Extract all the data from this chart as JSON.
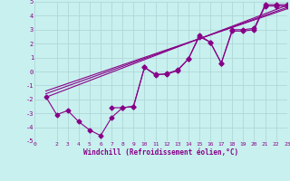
{
  "xlabel": "Windchill (Refroidissement éolien,°C)",
  "bg_color": "#c8f0ee",
  "grid_color": "#b0d8d8",
  "line_color": "#880088",
  "xlim": [
    0,
    23
  ],
  "ylim": [
    -5,
    5
  ],
  "yticks": [
    -5,
    -4,
    -3,
    -2,
    -1,
    0,
    1,
    2,
    3,
    4,
    5
  ],
  "xtick_labels": [
    "0",
    "2",
    "3",
    "4",
    "5",
    "6",
    "7",
    "8",
    "9",
    "10",
    "11",
    "12",
    "13",
    "14",
    "15",
    "16",
    "17",
    "18",
    "19",
    "20",
    "21",
    "22",
    "23"
  ],
  "xtick_vals": [
    0,
    2,
    3,
    4,
    5,
    6,
    7,
    8,
    9,
    10,
    11,
    12,
    13,
    14,
    15,
    16,
    17,
    18,
    19,
    20,
    21,
    22,
    23
  ],
  "series1_x": [
    1,
    2,
    3,
    4,
    5,
    6,
    7,
    8,
    9,
    10,
    11,
    12,
    13,
    14,
    15,
    16,
    17,
    18,
    19,
    20,
    21,
    22,
    23
  ],
  "series1_y": [
    -1.8,
    -3.1,
    -2.8,
    -3.6,
    -4.2,
    -4.6,
    -3.3,
    -2.6,
    -2.5,
    0.3,
    -0.25,
    -0.15,
    0.1,
    0.9,
    2.6,
    2.1,
    0.6,
    3.0,
    3.0,
    3.1,
    4.8,
    4.8,
    4.8
  ],
  "series2_x": [
    7,
    8,
    9,
    10,
    11,
    12,
    13,
    14,
    15,
    16,
    17,
    18,
    19,
    20,
    21,
    22,
    23
  ],
  "series2_y": [
    -2.6,
    -2.6,
    -2.5,
    0.3,
    -0.2,
    -0.2,
    0.05,
    0.9,
    2.5,
    2.1,
    0.6,
    2.9,
    2.9,
    3.0,
    4.7,
    4.7,
    4.7
  ],
  "trend1_x": [
    1,
    23
  ],
  "trend1_y": [
    -1.85,
    4.75
  ],
  "trend2_x": [
    1,
    23
  ],
  "trend2_y": [
    -1.6,
    4.6
  ],
  "trend3_x": [
    1,
    23
  ],
  "trend3_y": [
    -1.4,
    4.5
  ]
}
